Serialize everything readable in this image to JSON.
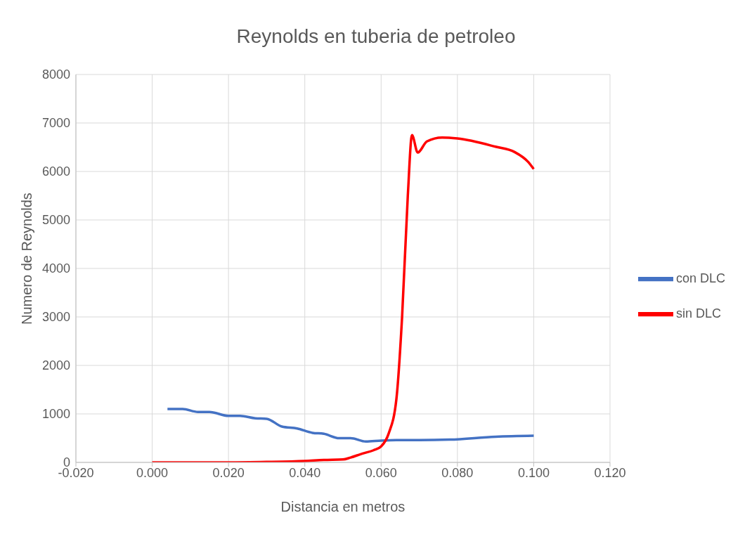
{
  "chart_data": {
    "type": "line",
    "title": "Reynolds en tuberia de petroleo",
    "xlabel": "Distancia en metros",
    "ylabel": "Numero de Reynolds",
    "xlim": [
      -0.02,
      0.12
    ],
    "xticks": [
      {
        "value": -0.02,
        "label": "-0.020"
      },
      {
        "value": 0,
        "label": "0.000"
      },
      {
        "value": 0.02,
        "label": "0.020"
      },
      {
        "value": 0.04,
        "label": "0.040"
      },
      {
        "value": 0.06,
        "label": "0.060"
      },
      {
        "value": 0.08,
        "label": "0.080"
      },
      {
        "value": 0.1,
        "label": "0.100"
      },
      {
        "value": 0.12,
        "label": "0.120"
      }
    ],
    "ylim": [
      0,
      8000
    ],
    "yticks": [
      0,
      1000,
      2000,
      3000,
      4000,
      5000,
      6000,
      7000,
      8000
    ],
    "grid": true,
    "legend": "right",
    "marker": "none",
    "line_style": "solid",
    "series": [
      {
        "name": "con DLC",
        "color": "#4472c4",
        "x": [
          0.004,
          0.008,
          0.012,
          0.015,
          0.02,
          0.023,
          0.027,
          0.03,
          0.034,
          0.038,
          0.042,
          0.045,
          0.049,
          0.052,
          0.056,
          0.06,
          0.064,
          0.07,
          0.078,
          0.09,
          0.1
        ],
        "values": [
          1100,
          1100,
          1040,
          1040,
          960,
          960,
          910,
          900,
          740,
          700,
          610,
          590,
          500,
          500,
          430,
          450,
          460,
          460,
          470,
          530,
          550
        ]
      },
      {
        "name": "sin DLC",
        "color": "#ff0000",
        "x": [
          0,
          0.02,
          0.03,
          0.04,
          0.045,
          0.05,
          0.052,
          0.055,
          0.058,
          0.06,
          0.062,
          0.064,
          0.0655,
          0.067,
          0.0681,
          0.0696,
          0.072,
          0.076,
          0.08,
          0.09,
          0.095,
          0.0985,
          0.1
        ],
        "values": [
          0,
          0,
          10,
          30,
          50,
          60,
          100,
          180,
          250,
          330,
          600,
          1300,
          3000,
          5500,
          6750,
          6390,
          6620,
          6700,
          6680,
          6510,
          6400,
          6200,
          6050
        ]
      }
    ]
  }
}
